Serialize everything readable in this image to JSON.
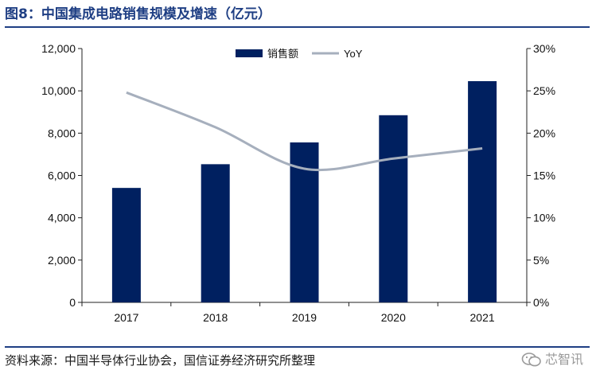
{
  "figure": {
    "title": "图8：中国集成电路销售规模及增速（亿元）",
    "source": "资料来源：中国半导体行业协会，国信证券经济研究所整理",
    "watermark": "芯智讯"
  },
  "chart_data": {
    "type": "bar",
    "categories": [
      "2017",
      "2018",
      "2019",
      "2020",
      "2021"
    ],
    "series": [
      {
        "name": "销售额",
        "type": "bar",
        "axis": "left",
        "color": "#002060",
        "values": [
          5411,
          6532,
          7562,
          8848,
          10458
        ]
      },
      {
        "name": "YoY",
        "type": "line",
        "axis": "right",
        "color": "#a6afbd",
        "values": [
          0.248,
          0.207,
          0.158,
          0.17,
          0.182
        ]
      }
    ],
    "y_left": {
      "range": [
        0,
        12000
      ],
      "ticks": [
        "0",
        "2,000",
        "4,000",
        "6,000",
        "8,000",
        "10,000",
        "12,000"
      ]
    },
    "y_right": {
      "range": [
        0,
        0.3
      ],
      "ticks": [
        "0%",
        "5%",
        "10%",
        "15%",
        "20%",
        "25%",
        "30%"
      ]
    },
    "legend": "top-center",
    "grid": false
  }
}
